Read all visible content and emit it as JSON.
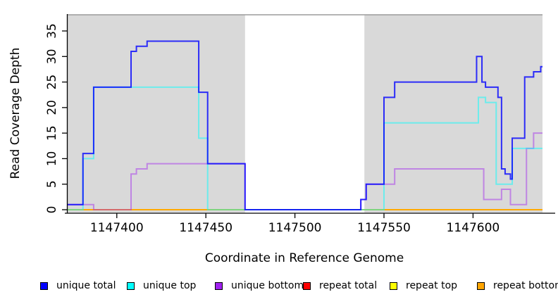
{
  "figure": {
    "title": "",
    "xlabel": "Coordinate in Reference Genome",
    "ylabel": "Read Coverage Depth"
  },
  "chart_data": {
    "type": "line",
    "step": true,
    "title": "",
    "xlabel": "Coordinate in Reference Genome",
    "ylabel": "Read Coverage Depth",
    "xlim": [
      1147372,
      1147639
    ],
    "ylim": [
      0,
      38.2
    ],
    "x_ticks": [
      1147400,
      1147450,
      1147500,
      1147550,
      1147600
    ],
    "y_ticks": [
      0,
      5,
      10,
      15,
      20,
      25,
      30,
      35
    ],
    "grid": false,
    "legend_position": "bottom",
    "background_color": "#ffffff",
    "shaded_region_color": "#d9d9d9",
    "shaded_regions": [
      {
        "start": 1147372,
        "end": 1147472
      },
      {
        "start": 1147539,
        "end": 1147639
      }
    ],
    "series": [
      {
        "name": "repeat total",
        "color": "#ff0000",
        "opacity": 0.9,
        "points": [
          [
            1147372,
            0
          ],
          [
            1147639,
            0
          ]
        ]
      },
      {
        "name": "repeat top",
        "color": "#ffff00",
        "opacity": 0.9,
        "points": [
          [
            1147372,
            0
          ],
          [
            1147639,
            0
          ]
        ]
      },
      {
        "name": "repeat bottom",
        "color": "#ffa500",
        "opacity": 0.95,
        "points": [
          [
            1147372,
            0
          ],
          [
            1147639,
            0
          ]
        ]
      },
      {
        "name": "unique bottom",
        "color": "#a020f0",
        "opacity": 0.45,
        "points": [
          [
            1147372,
            1
          ],
          [
            1147387,
            0
          ],
          [
            1147408,
            7
          ],
          [
            1147411,
            8
          ],
          [
            1147417,
            9
          ],
          [
            1147472,
            0
          ],
          [
            1147537,
            2
          ],
          [
            1147540,
            5
          ],
          [
            1147556,
            8
          ],
          [
            1147606,
            2
          ],
          [
            1147616,
            4
          ],
          [
            1147621,
            1
          ],
          [
            1147630,
            12
          ],
          [
            1147634,
            15
          ],
          [
            1147639,
            15
          ]
        ]
      },
      {
        "name": "unique top",
        "color": "#00ffff",
        "opacity": 0.5,
        "points": [
          [
            1147372,
            0
          ],
          [
            1147381,
            10
          ],
          [
            1147387,
            24
          ],
          [
            1147446,
            14
          ],
          [
            1147451,
            0
          ],
          [
            1147550,
            17
          ],
          [
            1147603,
            22
          ],
          [
            1147607,
            21
          ],
          [
            1147613,
            5
          ],
          [
            1147622,
            12
          ],
          [
            1147639,
            12
          ]
        ]
      },
      {
        "name": "unique total",
        "color": "#0000ff",
        "opacity": 0.8,
        "points": [
          [
            1147372,
            1
          ],
          [
            1147381,
            11
          ],
          [
            1147387,
            24
          ],
          [
            1147408,
            31
          ],
          [
            1147411,
            32
          ],
          [
            1147417,
            33
          ],
          [
            1147446,
            23
          ],
          [
            1147451,
            9
          ],
          [
            1147472,
            0
          ],
          [
            1147537,
            2
          ],
          [
            1147540,
            5
          ],
          [
            1147550,
            22
          ],
          [
            1147556,
            25
          ],
          [
            1147602,
            30
          ],
          [
            1147605,
            25
          ],
          [
            1147607,
            24
          ],
          [
            1147614,
            22
          ],
          [
            1147616,
            8
          ],
          [
            1147618,
            7
          ],
          [
            1147621,
            6
          ],
          [
            1147622,
            14
          ],
          [
            1147629,
            26
          ],
          [
            1147634,
            27
          ],
          [
            1147638,
            28
          ],
          [
            1147639,
            28
          ]
        ]
      }
    ]
  },
  "legend": {
    "items": [
      {
        "label": "unique total",
        "color": "#0000ff"
      },
      {
        "label": "unique top",
        "color": "#00ffff"
      },
      {
        "label": "unique bottom",
        "color": "#a020f0"
      },
      {
        "label": "repeat total",
        "color": "#ff0000"
      },
      {
        "label": "repeat top",
        "color": "#ffff00"
      },
      {
        "label": "repeat bottom",
        "color": "#ffa500"
      }
    ]
  }
}
